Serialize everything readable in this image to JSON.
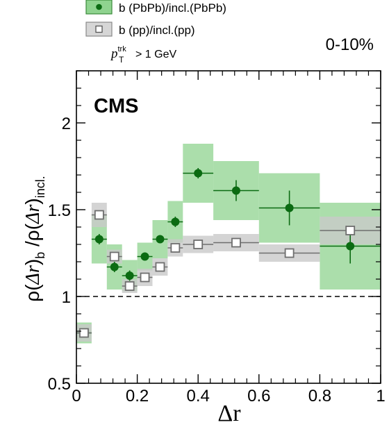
{
  "chart_data": {
    "type": "scatter",
    "experiment_label": "CMS",
    "centrality_label": "0-10%",
    "selection_label": {
      "variable": "p",
      "superscript": "trk",
      "subscript": "T",
      "cut": "> 1 GeV"
    },
    "xlabel": "Δr",
    "ylabel": {
      "p1": "ρ(",
      "v1": "Δr",
      "p2": ")",
      "s1": "b",
      "p3": " /ρ(",
      "v2": "Δr",
      "p4": ")",
      "s2": "incl."
    },
    "xlim": [
      0,
      1
    ],
    "ylim": [
      0.5,
      2.3
    ],
    "x_ticks": [
      0,
      0.2,
      0.4,
      0.6,
      0.8,
      1
    ],
    "x_tick_labels": [
      "0",
      "0.2",
      "0.4",
      "0.6",
      "0.8",
      "1"
    ],
    "y_ticks": [
      0.5,
      1,
      1.5,
      2
    ],
    "y_tick_labels": [
      "0.5",
      "1",
      "1.5",
      "2"
    ],
    "reference_line": 1,
    "grid": false,
    "legend_position": "top-left",
    "series": [
      {
        "name": "b (PbPb)/incl.(PbPb)",
        "marker": "filled-circle",
        "color": "#0b6b12",
        "band_color": "#8fd38f",
        "points": [
          {
            "x": 0.025,
            "xlo": 0.0,
            "xhi": 0.05,
            "y": 0.79,
            "stat": 0.02,
            "sys": 0.06
          },
          {
            "x": 0.075,
            "xlo": 0.05,
            "xhi": 0.1,
            "y": 1.33,
            "stat": 0.03,
            "sys": 0.14
          },
          {
            "x": 0.125,
            "xlo": 0.1,
            "xhi": 0.15,
            "y": 1.17,
            "stat": 0.03,
            "sys": 0.13
          },
          {
            "x": 0.175,
            "xlo": 0.15,
            "xhi": 0.2,
            "y": 1.12,
            "stat": 0.03,
            "sys": 0.09
          },
          {
            "x": 0.225,
            "xlo": 0.2,
            "xhi": 0.25,
            "y": 1.23,
            "stat": 0.02,
            "sys": 0.08
          },
          {
            "x": 0.275,
            "xlo": 0.25,
            "xhi": 0.3,
            "y": 1.33,
            "stat": 0.02,
            "sys": 0.11
          },
          {
            "x": 0.325,
            "xlo": 0.3,
            "xhi": 0.35,
            "y": 1.43,
            "stat": 0.03,
            "sys": 0.12
          },
          {
            "x": 0.4,
            "xlo": 0.35,
            "xhi": 0.45,
            "y": 1.71,
            "stat": 0.03,
            "sys": 0.17
          },
          {
            "x": 0.525,
            "xlo": 0.45,
            "xhi": 0.6,
            "y": 1.61,
            "stat": 0.06,
            "sys": 0.17
          },
          {
            "x": 0.7,
            "xlo": 0.6,
            "xhi": 0.8,
            "y": 1.51,
            "stat": 0.1,
            "sys": 0.2
          },
          {
            "x": 0.9,
            "xlo": 0.8,
            "xhi": 1.0,
            "y": 1.29,
            "stat": 0.1,
            "sys": 0.25
          }
        ]
      },
      {
        "name": "b (pp)/incl.(pp)",
        "marker": "open-square",
        "color": "#6e6e6e",
        "band_color": "#c9c9c9",
        "points": [
          {
            "x": 0.025,
            "xlo": 0.0,
            "xhi": 0.05,
            "y": 0.79,
            "stat": 0.01,
            "sys": 0.05
          },
          {
            "x": 0.075,
            "xlo": 0.05,
            "xhi": 0.1,
            "y": 1.47,
            "stat": 0.01,
            "sys": 0.07
          },
          {
            "x": 0.125,
            "xlo": 0.1,
            "xhi": 0.15,
            "y": 1.23,
            "stat": 0.01,
            "sys": 0.04
          },
          {
            "x": 0.175,
            "xlo": 0.15,
            "xhi": 0.2,
            "y": 1.06,
            "stat": 0.01,
            "sys": 0.04
          },
          {
            "x": 0.225,
            "xlo": 0.2,
            "xhi": 0.25,
            "y": 1.11,
            "stat": 0.01,
            "sys": 0.05
          },
          {
            "x": 0.275,
            "xlo": 0.25,
            "xhi": 0.3,
            "y": 1.17,
            "stat": 0.01,
            "sys": 0.05
          },
          {
            "x": 0.325,
            "xlo": 0.3,
            "xhi": 0.35,
            "y": 1.28,
            "stat": 0.01,
            "sys": 0.05
          },
          {
            "x": 0.4,
            "xlo": 0.35,
            "xhi": 0.45,
            "y": 1.3,
            "stat": 0.01,
            "sys": 0.05
          },
          {
            "x": 0.525,
            "xlo": 0.45,
            "xhi": 0.6,
            "y": 1.31,
            "stat": 0.01,
            "sys": 0.05
          },
          {
            "x": 0.7,
            "xlo": 0.6,
            "xhi": 0.8,
            "y": 1.25,
            "stat": 0.01,
            "sys": 0.05
          },
          {
            "x": 0.9,
            "xlo": 0.8,
            "xhi": 1.0,
            "y": 1.38,
            "stat": 0.02,
            "sys": 0.08
          }
        ]
      }
    ]
  }
}
